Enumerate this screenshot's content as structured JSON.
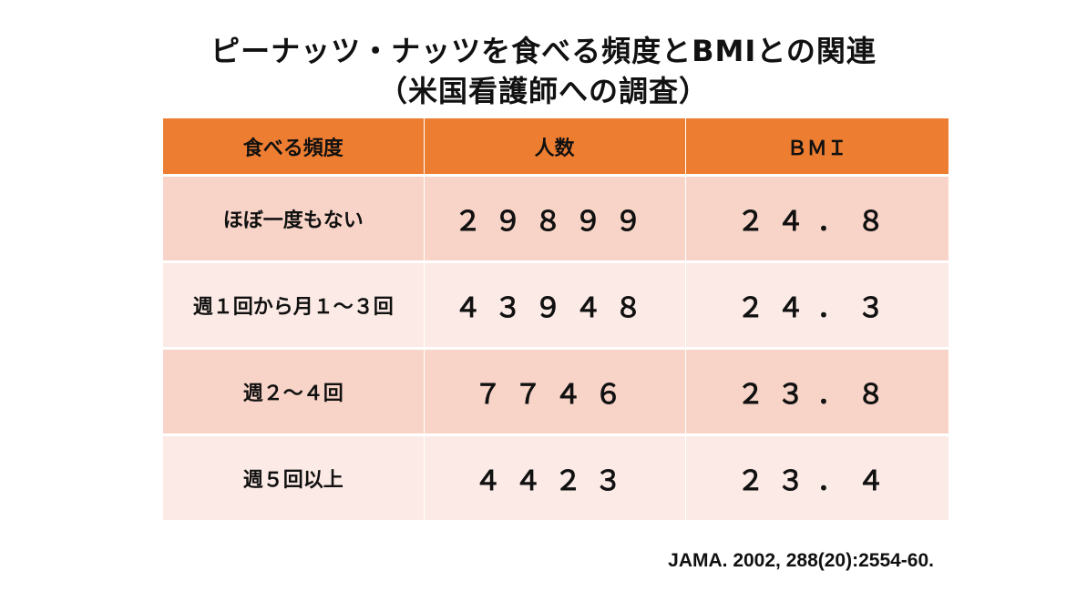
{
  "title": {
    "line1": "ピーナッツ・ナッツを食べる頻度とBMIとの関連",
    "line2": "（米国看護師への調査）"
  },
  "table": {
    "headers": [
      "食べる頻度",
      "人数",
      "ＢＭＩ"
    ],
    "rows": [
      [
        "ほぼ一度もない",
        "２９８９９",
        "２４．８"
      ],
      [
        "週１回から月１～３回",
        "４３９４８",
        "２４．３"
      ],
      [
        "週２～４回",
        "７７４６",
        "２３．８"
      ],
      [
        "週５回以上",
        "４４２３",
        "２３．４"
      ]
    ]
  },
  "citation": "JAMA. 2002, 288(20):2554-60.",
  "colors": {
    "header_bg": "#ed7d31",
    "row_dark": "#f8d4c8",
    "row_light": "#fbeae5"
  }
}
